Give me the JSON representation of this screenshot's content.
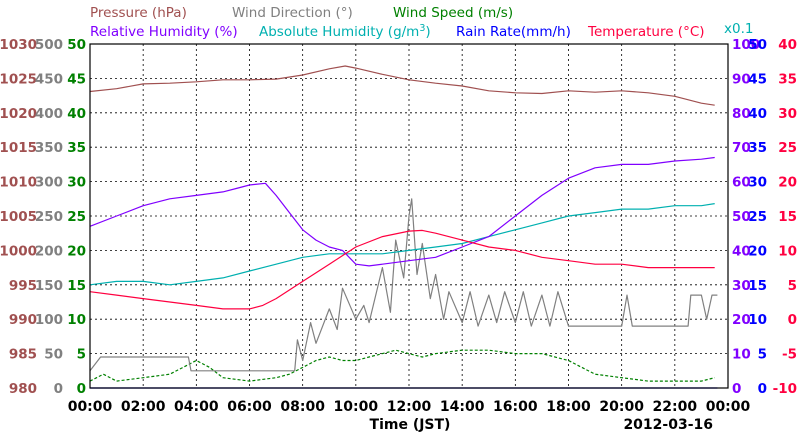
{
  "chart_data": {
    "type": "line",
    "header": {
      "pressure": "Pressure (hPa)",
      "wind_direction": "Wind Direction (°)",
      "wind_speed": "Wind Speed (m/s)",
      "relative_humidity": "Relative Humidity (%)",
      "absolute_humidity_prefix": "Absolute Humidity (g/m",
      "absolute_humidity_sup": "3",
      "absolute_humidity_suffix": ")",
      "rain_rate": "Rain Rate(mm/h)",
      "temperature": "Temperature (°C)",
      "multiplier": "x0.1"
    },
    "xlabel": "Time (JST)",
    "date": "2012-03-16",
    "x_ticks": [
      "00:00",
      "02:00",
      "04:00",
      "06:00",
      "08:00",
      "10:00",
      "12:00",
      "14:00",
      "16:00",
      "18:00",
      "20:00",
      "22:00",
      "00:00"
    ],
    "x_range_hours": [
      0,
      24
    ],
    "grid": true,
    "colors": {
      "pressure": "#a05050",
      "wind_direction": "#808080",
      "wind_speed": "#008000",
      "relative_humidity": "#8000ff",
      "absolute_humidity": "#00b0b0",
      "rain_rate": "#0000ff",
      "temperature": "#ff0040"
    },
    "axes": {
      "pressure": {
        "ticks": [
          1030,
          1025,
          1020,
          1015,
          1010,
          1005,
          1000,
          995,
          990,
          985,
          980
        ],
        "range": [
          980,
          1030
        ]
      },
      "wind_direction": {
        "ticks": [
          500,
          450,
          400,
          350,
          300,
          250,
          200,
          150,
          100,
          50,
          0
        ],
        "range": [
          0,
          500
        ]
      },
      "wind_speed": {
        "ticks": [
          50,
          45,
          40,
          35,
          30,
          25,
          20,
          15,
          10,
          5,
          0
        ],
        "range": [
          0,
          50
        ]
      },
      "relative_humidity": {
        "ticks": [
          100,
          90,
          80,
          70,
          60,
          50,
          40,
          30,
          20,
          10,
          0
        ],
        "range": [
          0,
          100
        ]
      },
      "rain_rate": {
        "ticks": [
          50,
          45,
          40,
          35,
          30,
          25,
          20,
          15,
          10,
          5,
          0
        ],
        "range": [
          0,
          50
        ]
      },
      "temperature": {
        "ticks": [
          40,
          35,
          30,
          25,
          20,
          15,
          10,
          5,
          0,
          -5,
          -10
        ],
        "range": [
          -10,
          40
        ]
      }
    },
    "series": [
      {
        "name": "Pressure (hPa)",
        "key": "pressure",
        "axis": "pressure",
        "style": "solid",
        "points": [
          [
            0,
            1023.1
          ],
          [
            1,
            1023.5
          ],
          [
            2,
            1024.2
          ],
          [
            3,
            1024.3
          ],
          [
            4,
            1024.5
          ],
          [
            5,
            1024.8
          ],
          [
            6,
            1024.8
          ],
          [
            7,
            1024.9
          ],
          [
            8,
            1025.5
          ],
          [
            9,
            1026.4
          ],
          [
            9.6,
            1026.8
          ],
          [
            10,
            1026.5
          ],
          [
            11,
            1025.6
          ],
          [
            12,
            1024.8
          ],
          [
            13,
            1024.3
          ],
          [
            14,
            1023.9
          ],
          [
            15,
            1023.2
          ],
          [
            16,
            1022.9
          ],
          [
            17,
            1022.8
          ],
          [
            18,
            1023.2
          ],
          [
            19,
            1023.0
          ],
          [
            20,
            1023.2
          ],
          [
            21,
            1022.9
          ],
          [
            22,
            1022.4
          ],
          [
            23,
            1021.4
          ],
          [
            23.5,
            1021.1
          ]
        ]
      },
      {
        "name": "Relative Humidity (%)",
        "key": "relative_humidity",
        "axis": "relative_humidity",
        "style": "solid",
        "points": [
          [
            0,
            47
          ],
          [
            1,
            50
          ],
          [
            2,
            53
          ],
          [
            3,
            55
          ],
          [
            4,
            56
          ],
          [
            5,
            57
          ],
          [
            5.5,
            58
          ],
          [
            6,
            59
          ],
          [
            6.6,
            59.5
          ],
          [
            7,
            56
          ],
          [
            7.5,
            51
          ],
          [
            8,
            46
          ],
          [
            8.5,
            43
          ],
          [
            9,
            41
          ],
          [
            9.5,
            40
          ],
          [
            10,
            36
          ],
          [
            10.5,
            35.5
          ],
          [
            11,
            36
          ],
          [
            12,
            37
          ],
          [
            13,
            38
          ],
          [
            14,
            41
          ],
          [
            15,
            44
          ],
          [
            16,
            50
          ],
          [
            17,
            56
          ],
          [
            18,
            61
          ],
          [
            19,
            64
          ],
          [
            20,
            65
          ],
          [
            21,
            65
          ],
          [
            22,
            66
          ],
          [
            23,
            66.5
          ],
          [
            23.5,
            67
          ]
        ]
      },
      {
        "name": "Absolute Humidity (g/m3)",
        "key": "absolute_humidity",
        "axis": "wind_speed",
        "style": "solid",
        "points": [
          [
            0,
            15
          ],
          [
            1,
            15.5
          ],
          [
            2,
            15.5
          ],
          [
            3,
            15
          ],
          [
            4,
            15.5
          ],
          [
            5,
            16
          ],
          [
            6,
            17
          ],
          [
            7,
            18
          ],
          [
            8,
            19
          ],
          [
            9,
            19.5
          ],
          [
            10,
            19.5
          ],
          [
            11,
            19.5
          ],
          [
            12,
            20
          ],
          [
            13,
            20.5
          ],
          [
            14,
            21
          ],
          [
            15,
            22
          ],
          [
            16,
            23
          ],
          [
            17,
            24
          ],
          [
            18,
            25
          ],
          [
            19,
            25.5
          ],
          [
            20,
            26
          ],
          [
            21,
            26
          ],
          [
            22,
            26.5
          ],
          [
            23,
            26.5
          ],
          [
            23.5,
            26.8
          ]
        ]
      },
      {
        "name": "Temperature (°C)",
        "key": "temperature",
        "axis": "temperature",
        "style": "solid",
        "points": [
          [
            0,
            4.0
          ],
          [
            1,
            3.5
          ],
          [
            2,
            3.0
          ],
          [
            3,
            2.5
          ],
          [
            4,
            2.0
          ],
          [
            5,
            1.5
          ],
          [
            6,
            1.5
          ],
          [
            6.5,
            2.0
          ],
          [
            7,
            3.0
          ],
          [
            8,
            5.5
          ],
          [
            9,
            8.0
          ],
          [
            10,
            10.5
          ],
          [
            11,
            12.0
          ],
          [
            12,
            12.8
          ],
          [
            12.5,
            12.9
          ],
          [
            13,
            12.5
          ],
          [
            14,
            11.5
          ],
          [
            15,
            10.5
          ],
          [
            16,
            10.0
          ],
          [
            17,
            9.0
          ],
          [
            18,
            8.5
          ],
          [
            19,
            8.0
          ],
          [
            20,
            8.0
          ],
          [
            21,
            7.5
          ],
          [
            22,
            7.5
          ],
          [
            23,
            7.5
          ],
          [
            23.5,
            7.5
          ]
        ]
      },
      {
        "name": "Wind Direction (°)",
        "key": "wind_direction",
        "axis": "wind_direction",
        "style": "solid",
        "points": [
          [
            0,
            25
          ],
          [
            0.4,
            45
          ],
          [
            1,
            45
          ],
          [
            2,
            45
          ],
          [
            3,
            45
          ],
          [
            3.7,
            45
          ],
          [
            3.8,
            25
          ],
          [
            5,
            25
          ],
          [
            6,
            25
          ],
          [
            7,
            25
          ],
          [
            7.7,
            25
          ],
          [
            7.8,
            70
          ],
          [
            8,
            40
          ],
          [
            8.3,
            95
          ],
          [
            8.5,
            65
          ],
          [
            9,
            115
          ],
          [
            9.3,
            85
          ],
          [
            9.5,
            145
          ],
          [
            10,
            100
          ],
          [
            10.3,
            120
          ],
          [
            10.5,
            95
          ],
          [
            11,
            175
          ],
          [
            11.3,
            110
          ],
          [
            11.5,
            215
          ],
          [
            11.8,
            160
          ],
          [
            12,
            250
          ],
          [
            12.1,
            275
          ],
          [
            12.3,
            165
          ],
          [
            12.5,
            210
          ],
          [
            12.8,
            130
          ],
          [
            13,
            165
          ],
          [
            13.3,
            100
          ],
          [
            13.5,
            140
          ],
          [
            14,
            95
          ],
          [
            14.3,
            140
          ],
          [
            14.6,
            90
          ],
          [
            15,
            135
          ],
          [
            15.3,
            95
          ],
          [
            15.6,
            140
          ],
          [
            16,
            95
          ],
          [
            16.3,
            140
          ],
          [
            16.6,
            90
          ],
          [
            17,
            135
          ],
          [
            17.3,
            90
          ],
          [
            17.6,
            140
          ],
          [
            18,
            90
          ],
          [
            19,
            90
          ],
          [
            20,
            90
          ],
          [
            20.2,
            135
          ],
          [
            20.4,
            90
          ],
          [
            22,
            90
          ],
          [
            22.5,
            90
          ],
          [
            22.6,
            135
          ],
          [
            23,
            135
          ],
          [
            23.2,
            100
          ],
          [
            23.4,
            135
          ],
          [
            23.6,
            135
          ]
        ]
      },
      {
        "name": "Wind Speed (m/s)",
        "key": "wind_speed",
        "axis": "wind_speed",
        "style": "dashed",
        "points": [
          [
            0,
            1.0
          ],
          [
            0.5,
            2.0
          ],
          [
            1,
            1.0
          ],
          [
            2,
            1.5
          ],
          [
            3,
            2.0
          ],
          [
            3.5,
            3.0
          ],
          [
            4,
            4.0
          ],
          [
            4.5,
            3.0
          ],
          [
            5,
            1.5
          ],
          [
            6,
            1.0
          ],
          [
            7,
            1.5
          ],
          [
            7.5,
            2.0
          ],
          [
            8,
            3.0
          ],
          [
            8.5,
            4.0
          ],
          [
            9,
            4.5
          ],
          [
            9.5,
            4.0
          ],
          [
            10,
            4.0
          ],
          [
            10.5,
            4.5
          ],
          [
            11,
            5.0
          ],
          [
            11.5,
            5.5
          ],
          [
            12,
            5.0
          ],
          [
            12.5,
            4.5
          ],
          [
            13,
            5.0
          ],
          [
            14,
            5.5
          ],
          [
            15,
            5.5
          ],
          [
            16,
            5.0
          ],
          [
            17,
            5.0
          ],
          [
            18,
            4.0
          ],
          [
            18.5,
            3.0
          ],
          [
            19,
            2.0
          ],
          [
            20,
            1.5
          ],
          [
            21,
            1.0
          ],
          [
            22,
            1.0
          ],
          [
            23,
            1.0
          ],
          [
            23.5,
            1.5
          ]
        ]
      },
      {
        "name": "Rain Rate(mm/h)",
        "key": "rain_rate",
        "axis": "rain_rate",
        "style": "solid",
        "points": [
          [
            0,
            0
          ],
          [
            23.6,
            0
          ]
        ]
      }
    ]
  }
}
